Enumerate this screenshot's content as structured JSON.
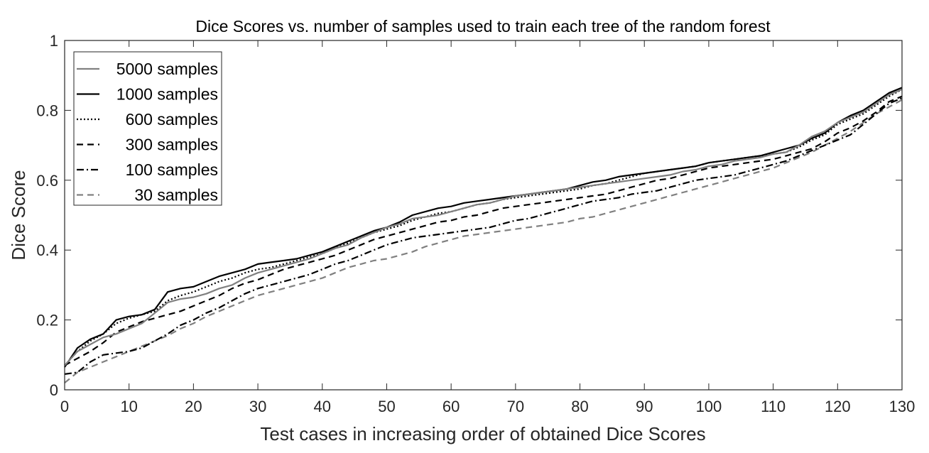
{
  "chart_data": {
    "type": "line",
    "title": "Dice Scores vs. number of samples used to train each tree of the random forest",
    "xlabel": "Test cases in increasing order of obtained Dice Scores",
    "ylabel": "Dice Score",
    "xlim": [
      0,
      130
    ],
    "ylim": [
      0,
      1
    ],
    "xticks": [
      "0",
      "10",
      "20",
      "30",
      "40",
      "50",
      "60",
      "70",
      "80",
      "90",
      "100",
      "110",
      "120",
      "130"
    ],
    "yticks": [
      "0",
      "0.2",
      "0.4",
      "0.6",
      "0.8",
      "1"
    ],
    "grid": false,
    "legend_position": "top-left",
    "x": [
      0,
      2,
      4,
      6,
      8,
      10,
      12,
      14,
      16,
      18,
      20,
      22,
      24,
      26,
      28,
      30,
      32,
      34,
      36,
      38,
      40,
      42,
      44,
      46,
      48,
      50,
      52,
      54,
      56,
      58,
      60,
      62,
      64,
      66,
      68,
      70,
      72,
      74,
      76,
      78,
      80,
      82,
      84,
      86,
      88,
      90,
      92,
      94,
      96,
      98,
      100,
      102,
      104,
      106,
      108,
      110,
      112,
      114,
      116,
      118,
      120,
      122,
      124,
      126,
      128,
      130
    ],
    "series": [
      {
        "name": "5000 samples",
        "color": "#808080",
        "dash": "",
        "values": [
          0.07,
          0.11,
          0.13,
          0.15,
          0.16,
          0.175,
          0.19,
          0.22,
          0.25,
          0.26,
          0.265,
          0.275,
          0.29,
          0.3,
          0.32,
          0.335,
          0.345,
          0.355,
          0.365,
          0.375,
          0.39,
          0.405,
          0.415,
          0.435,
          0.45,
          0.465,
          0.475,
          0.49,
          0.495,
          0.5,
          0.51,
          0.52,
          0.53,
          0.535,
          0.545,
          0.555,
          0.56,
          0.565,
          0.57,
          0.575,
          0.58,
          0.585,
          0.59,
          0.595,
          0.6,
          0.605,
          0.61,
          0.615,
          0.625,
          0.63,
          0.64,
          0.645,
          0.655,
          0.66,
          0.665,
          0.675,
          0.68,
          0.7,
          0.725,
          0.74,
          0.765,
          0.78,
          0.795,
          0.82,
          0.845,
          0.86
        ]
      },
      {
        "name": "1000 samples",
        "color": "#000000",
        "dash": "",
        "values": [
          0.065,
          0.12,
          0.145,
          0.16,
          0.2,
          0.21,
          0.215,
          0.23,
          0.28,
          0.29,
          0.295,
          0.31,
          0.325,
          0.335,
          0.345,
          0.36,
          0.365,
          0.37,
          0.375,
          0.385,
          0.395,
          0.41,
          0.425,
          0.44,
          0.455,
          0.465,
          0.48,
          0.5,
          0.51,
          0.52,
          0.525,
          0.535,
          0.54,
          0.545,
          0.55,
          0.555,
          0.56,
          0.565,
          0.57,
          0.575,
          0.585,
          0.595,
          0.6,
          0.61,
          0.615,
          0.62,
          0.625,
          0.63,
          0.635,
          0.64,
          0.65,
          0.655,
          0.66,
          0.665,
          0.67,
          0.68,
          0.69,
          0.7,
          0.72,
          0.735,
          0.765,
          0.785,
          0.8,
          0.825,
          0.85,
          0.865
        ]
      },
      {
        "name": "600 samples",
        "color": "#000000",
        "dash": "2,3",
        "values": [
          0.07,
          0.11,
          0.14,
          0.16,
          0.19,
          0.205,
          0.215,
          0.225,
          0.255,
          0.27,
          0.28,
          0.295,
          0.31,
          0.32,
          0.335,
          0.345,
          0.35,
          0.36,
          0.37,
          0.38,
          0.39,
          0.405,
          0.42,
          0.435,
          0.45,
          0.46,
          0.47,
          0.485,
          0.495,
          0.505,
          0.51,
          0.52,
          0.53,
          0.535,
          0.545,
          0.55,
          0.555,
          0.56,
          0.565,
          0.57,
          0.575,
          0.585,
          0.59,
          0.6,
          0.61,
          0.62,
          0.625,
          0.63,
          0.635,
          0.64,
          0.65,
          0.655,
          0.66,
          0.665,
          0.67,
          0.675,
          0.68,
          0.695,
          0.715,
          0.73,
          0.76,
          0.775,
          0.79,
          0.815,
          0.84,
          0.86
        ]
      },
      {
        "name": "300 samples",
        "color": "#000000",
        "dash": "9,6",
        "values": [
          0.07,
          0.09,
          0.11,
          0.135,
          0.165,
          0.18,
          0.195,
          0.205,
          0.215,
          0.225,
          0.24,
          0.255,
          0.27,
          0.29,
          0.305,
          0.315,
          0.33,
          0.345,
          0.355,
          0.365,
          0.375,
          0.385,
          0.4,
          0.415,
          0.43,
          0.44,
          0.45,
          0.46,
          0.47,
          0.48,
          0.485,
          0.495,
          0.5,
          0.51,
          0.52,
          0.525,
          0.53,
          0.535,
          0.54,
          0.545,
          0.55,
          0.555,
          0.56,
          0.57,
          0.58,
          0.59,
          0.6,
          0.605,
          0.615,
          0.625,
          0.635,
          0.64,
          0.645,
          0.65,
          0.655,
          0.66,
          0.67,
          0.68,
          0.69,
          0.71,
          0.735,
          0.75,
          0.77,
          0.795,
          0.825,
          0.84
        ]
      },
      {
        "name": "100 samples",
        "color": "#000000",
        "dash": "10,4,2,4",
        "values": [
          0.045,
          0.05,
          0.08,
          0.1,
          0.105,
          0.11,
          0.12,
          0.14,
          0.16,
          0.185,
          0.2,
          0.22,
          0.235,
          0.255,
          0.275,
          0.29,
          0.3,
          0.31,
          0.32,
          0.33,
          0.345,
          0.36,
          0.37,
          0.385,
          0.4,
          0.415,
          0.425,
          0.435,
          0.44,
          0.445,
          0.45,
          0.455,
          0.46,
          0.465,
          0.475,
          0.485,
          0.49,
          0.5,
          0.51,
          0.52,
          0.53,
          0.54,
          0.545,
          0.55,
          0.56,
          0.565,
          0.57,
          0.58,
          0.59,
          0.6,
          0.605,
          0.61,
          0.615,
          0.625,
          0.635,
          0.645,
          0.655,
          0.67,
          0.685,
          0.7,
          0.715,
          0.73,
          0.76,
          0.79,
          0.82,
          0.835
        ]
      },
      {
        "name": "30 samples",
        "color": "#808080",
        "dash": "9,6",
        "values": [
          0.02,
          0.05,
          0.065,
          0.08,
          0.095,
          0.11,
          0.125,
          0.14,
          0.155,
          0.175,
          0.19,
          0.21,
          0.225,
          0.24,
          0.255,
          0.27,
          0.28,
          0.29,
          0.3,
          0.31,
          0.32,
          0.335,
          0.35,
          0.36,
          0.37,
          0.375,
          0.385,
          0.395,
          0.41,
          0.42,
          0.43,
          0.44,
          0.445,
          0.45,
          0.455,
          0.46,
          0.465,
          0.47,
          0.475,
          0.48,
          0.49,
          0.495,
          0.505,
          0.515,
          0.525,
          0.535,
          0.545,
          0.555,
          0.565,
          0.575,
          0.585,
          0.595,
          0.605,
          0.615,
          0.625,
          0.635,
          0.65,
          0.665,
          0.68,
          0.7,
          0.72,
          0.74,
          0.765,
          0.79,
          0.81,
          0.83
        ]
      }
    ]
  }
}
